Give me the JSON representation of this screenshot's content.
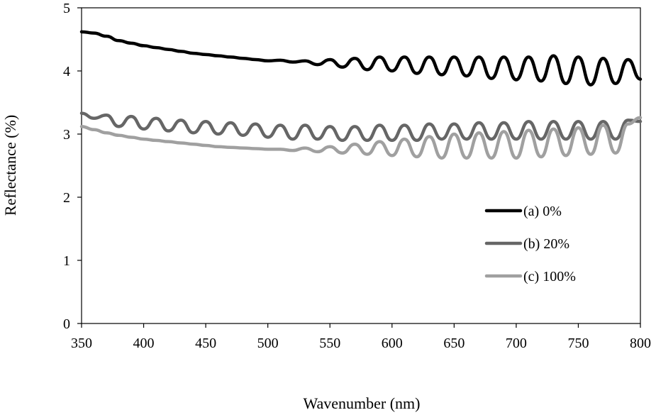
{
  "chart_data": {
    "type": "line",
    "title": "",
    "xlabel": "Wavenumber (nm)",
    "ylabel": "Reflectance (%)",
    "xlim": [
      350,
      800
    ],
    "ylim": [
      0,
      5
    ],
    "x_ticks": [
      "350",
      "400",
      "450",
      "500",
      "550",
      "600",
      "650",
      "700",
      "750",
      "800"
    ],
    "y_ticks": [
      "0",
      "1",
      "2",
      "3",
      "4",
      "5"
    ],
    "grid": false,
    "legend_position": "right",
    "series": [
      {
        "name": "(a) 0%",
        "color": "#000000",
        "x": [
          350,
          360,
          370,
          380,
          390,
          400,
          410,
          420,
          430,
          440,
          450,
          460,
          470,
          480,
          490,
          500,
          510,
          520,
          530,
          540,
          550,
          560,
          570,
          580,
          590,
          600,
          610,
          620,
          630,
          640,
          650,
          660,
          670,
          680,
          690,
          700,
          710,
          720,
          730,
          740,
          750,
          760,
          770,
          780,
          790,
          800
        ],
        "values": [
          4.62,
          4.6,
          4.55,
          4.48,
          4.44,
          4.4,
          4.37,
          4.34,
          4.31,
          4.28,
          4.26,
          4.24,
          4.22,
          4.2,
          4.18,
          4.16,
          4.17,
          4.14,
          4.16,
          4.1,
          4.18,
          4.06,
          4.2,
          4.02,
          4.22,
          4.0,
          4.22,
          3.96,
          4.22,
          3.94,
          4.22,
          3.92,
          4.22,
          3.88,
          4.22,
          3.86,
          4.22,
          3.84,
          4.24,
          3.8,
          4.22,
          3.78,
          4.2,
          3.8,
          4.18,
          3.87
        ]
      },
      {
        "name": "(b) 20%",
        "color": "#666666",
        "x": [
          350,
          360,
          370,
          380,
          390,
          400,
          410,
          420,
          430,
          440,
          450,
          460,
          470,
          480,
          490,
          500,
          510,
          520,
          530,
          540,
          550,
          560,
          570,
          580,
          590,
          600,
          610,
          620,
          630,
          640,
          650,
          660,
          670,
          680,
          690,
          700,
          710,
          720,
          730,
          740,
          750,
          760,
          770,
          780,
          790,
          800
        ],
        "values": [
          3.33,
          3.25,
          3.3,
          3.12,
          3.28,
          3.08,
          3.25,
          3.05,
          3.22,
          3.02,
          3.2,
          3.0,
          3.18,
          2.98,
          3.16,
          2.95,
          3.14,
          2.92,
          3.14,
          2.92,
          3.12,
          2.9,
          3.12,
          2.9,
          3.14,
          2.9,
          3.14,
          2.9,
          3.16,
          2.92,
          3.16,
          2.92,
          3.18,
          2.92,
          3.18,
          2.92,
          3.2,
          2.92,
          3.2,
          2.92,
          3.2,
          2.92,
          3.2,
          2.92,
          3.22,
          3.2
        ]
      },
      {
        "name": "(c) 100%",
        "color": "#a0a0a0",
        "x": [
          350,
          360,
          370,
          380,
          390,
          400,
          410,
          420,
          430,
          440,
          450,
          460,
          470,
          480,
          490,
          500,
          510,
          520,
          530,
          540,
          550,
          560,
          570,
          580,
          590,
          600,
          610,
          620,
          630,
          640,
          650,
          660,
          670,
          680,
          690,
          700,
          710,
          720,
          730,
          740,
          750,
          760,
          770,
          780,
          790,
          800
        ],
        "values": [
          3.12,
          3.07,
          3.02,
          2.98,
          2.95,
          2.92,
          2.9,
          2.88,
          2.86,
          2.84,
          2.82,
          2.8,
          2.79,
          2.78,
          2.77,
          2.76,
          2.76,
          2.74,
          2.78,
          2.72,
          2.8,
          2.7,
          2.84,
          2.68,
          2.88,
          2.66,
          2.92,
          2.64,
          2.96,
          2.62,
          3.0,
          2.62,
          3.02,
          2.62,
          3.04,
          2.62,
          3.06,
          2.64,
          3.08,
          2.66,
          3.1,
          2.68,
          3.14,
          2.7,
          3.16,
          3.26
        ]
      }
    ]
  }
}
